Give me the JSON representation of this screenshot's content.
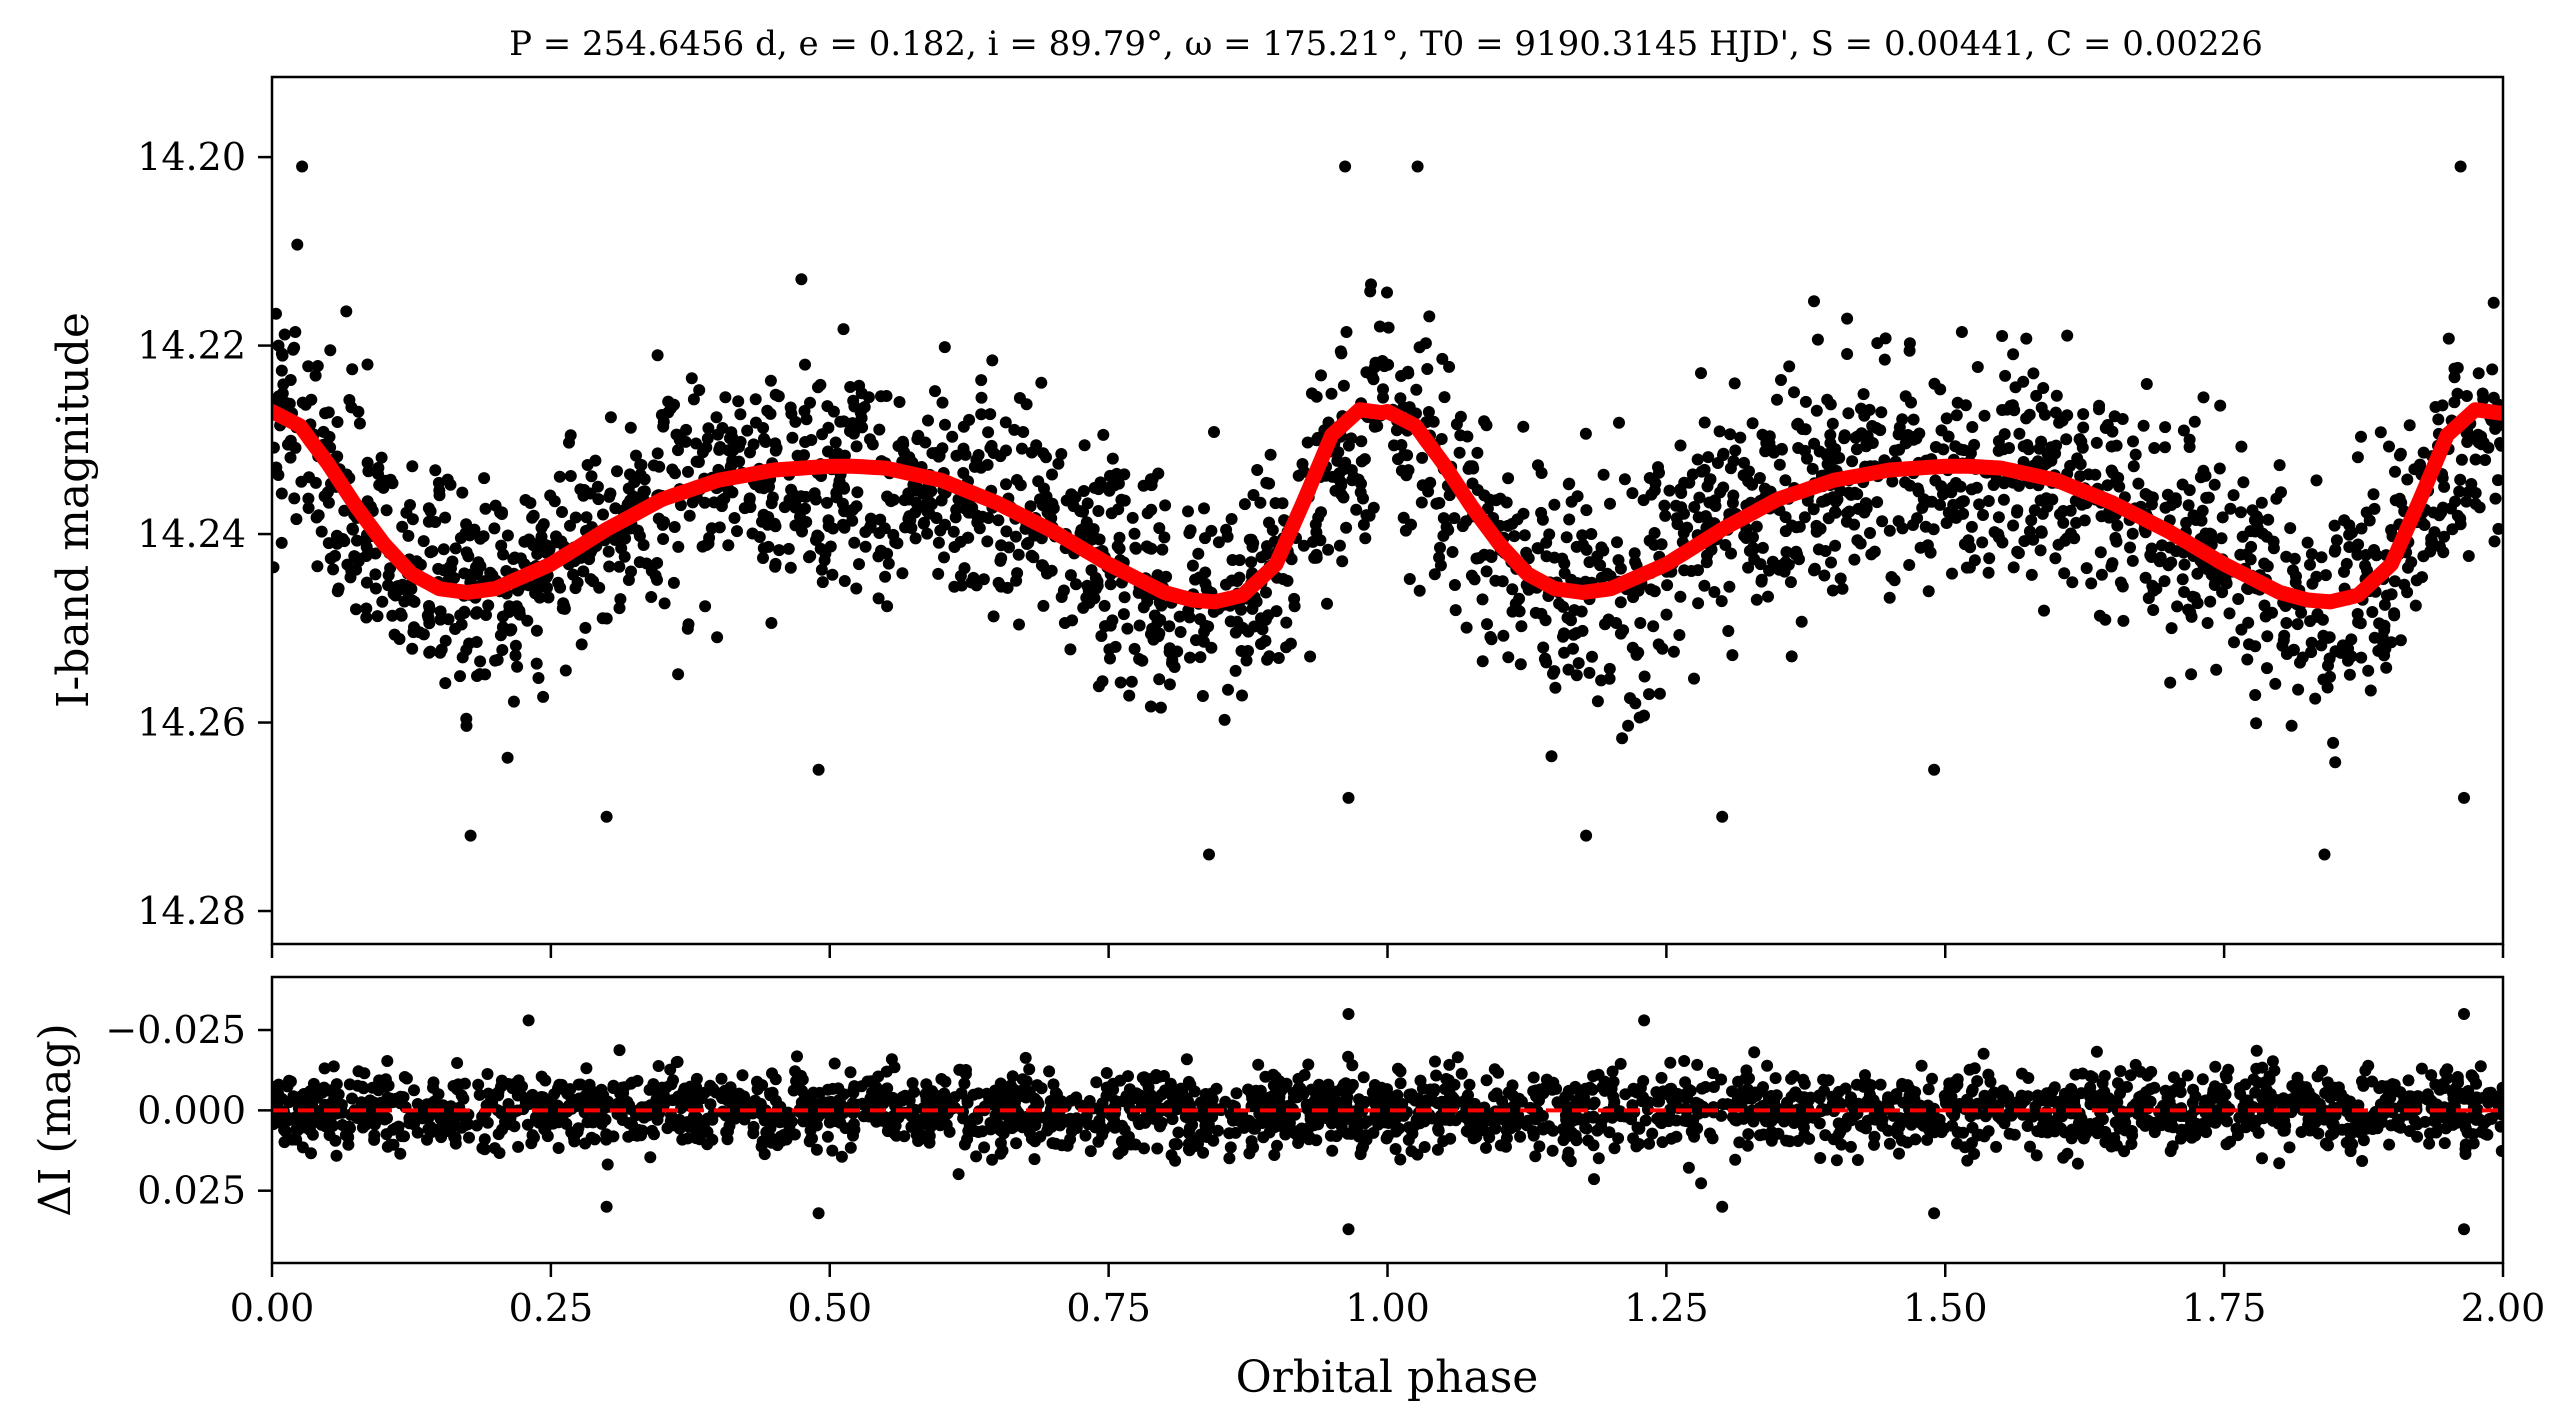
{
  "chart_data": [
    {
      "type": "scatter",
      "panel": "light curve",
      "title": "P = 254.6456 d, e = 0.182, i = 89.79°, ω = 175.21°, T0 = 9190.3145 HJD', S = 0.00441, C = 0.00226",
      "xlabel": "",
      "ylabel": "I-band magnitude",
      "xlim": [
        0.0,
        2.0
      ],
      "ylim": [
        14.2835,
        14.1915
      ],
      "y_inverted": true,
      "y_ticks": [
        "14.20",
        "14.22",
        "14.24",
        "14.26",
        "14.28"
      ],
      "x_ticks": [
        0.0,
        0.25,
        0.5,
        0.75,
        1.0,
        1.25,
        1.5,
        1.75,
        2.0
      ],
      "series": [
        {
          "kind": "observations",
          "color": "#000000",
          "x": [
            0.0,
            0.05,
            0.1,
            0.15,
            0.175,
            0.2,
            0.25,
            0.3,
            0.35,
            0.4,
            0.45,
            0.5,
            0.55,
            0.6,
            0.65,
            0.7,
            0.75,
            0.8,
            0.845,
            0.9,
            0.95,
            1.0,
            1.05,
            1.1,
            1.15,
            1.175,
            1.2,
            1.25,
            1.3,
            1.35,
            1.4,
            1.45,
            1.5,
            1.55,
            1.6,
            1.65,
            1.7,
            1.75,
            1.8,
            1.845,
            1.9,
            1.95,
            2.0
          ],
          "y_center": [
            14.227,
            14.234,
            14.241,
            14.245,
            14.2465,
            14.246,
            14.243,
            14.239,
            14.2365,
            14.2345,
            14.2335,
            14.233,
            14.2333,
            14.2343,
            14.2362,
            14.239,
            14.2425,
            14.246,
            14.2472,
            14.244,
            14.233,
            14.227,
            14.234,
            14.241,
            14.245,
            14.2465,
            14.246,
            14.243,
            14.239,
            14.2365,
            14.2345,
            14.2335,
            14.233,
            14.2333,
            14.2343,
            14.2362,
            14.239,
            14.2425,
            14.246,
            14.2472,
            14.244,
            14.233,
            14.227
          ],
          "scatter_mag": 0.006,
          "outliers": [
            {
              "x": 0.027,
              "y": 14.201
            },
            {
              "x": 0.962,
              "y": 14.201
            },
            {
              "x": 1.027,
              "y": 14.201
            },
            {
              "x": 1.962,
              "y": 14.201
            },
            {
              "x": 0.178,
              "y": 14.272
            },
            {
              "x": 0.84,
              "y": 14.274
            },
            {
              "x": 1.178,
              "y": 14.272
            },
            {
              "x": 1.84,
              "y": 14.274
            },
            {
              "x": 0.49,
              "y": 14.265
            },
            {
              "x": 1.49,
              "y": 14.265
            },
            {
              "x": 0.965,
              "y": 14.268
            },
            {
              "x": 1.965,
              "y": 14.268
            },
            {
              "x": 0.3,
              "y": 14.27
            },
            {
              "x": 1.3,
              "y": 14.27
            }
          ]
        },
        {
          "kind": "model",
          "color": "#ff0000",
          "x": [
            0.0,
            0.025,
            0.05,
            0.075,
            0.1,
            0.125,
            0.15,
            0.175,
            0.2,
            0.25,
            0.3,
            0.35,
            0.4,
            0.45,
            0.5,
            0.52,
            0.55,
            0.6,
            0.65,
            0.7,
            0.75,
            0.8,
            0.825,
            0.845,
            0.87,
            0.9,
            0.925,
            0.95,
            0.975,
            1.0,
            1.005
          ],
          "y": [
            14.227,
            14.2285,
            14.2325,
            14.237,
            14.241,
            14.2442,
            14.2458,
            14.2462,
            14.2458,
            14.2432,
            14.2395,
            14.2363,
            14.2343,
            14.2332,
            14.2328,
            14.2328,
            14.233,
            14.2343,
            14.2367,
            14.2397,
            14.2432,
            14.2462,
            14.247,
            14.2472,
            14.2465,
            14.2432,
            14.2365,
            14.2295,
            14.2268,
            14.2272,
            14.227
          ]
        }
      ]
    },
    {
      "type": "scatter",
      "panel": "residuals",
      "xlabel": "Orbital phase",
      "ylabel": "ΔI (mag)",
      "xlim": [
        0.0,
        2.0
      ],
      "ylim": [
        0.0475,
        -0.0415
      ],
      "y_inverted": true,
      "y_ticks": [
        "−0.025",
        "0.000",
        "0.025"
      ],
      "x_ticks": [
        "0.00",
        "0.25",
        "0.50",
        "0.75",
        "1.00",
        "1.25",
        "1.50",
        "1.75",
        "2.00"
      ],
      "series": [
        {
          "kind": "residuals",
          "color": "#000000",
          "center": 0.0,
          "scatter_mag": 0.006,
          "outliers": [
            {
              "x": 0.23,
              "y": -0.028
            },
            {
              "x": 0.965,
              "y": -0.03
            },
            {
              "x": 1.23,
              "y": -0.028
            },
            {
              "x": 1.965,
              "y": -0.03
            },
            {
              "x": 0.965,
              "y": 0.037
            },
            {
              "x": 1.965,
              "y": 0.037
            },
            {
              "x": 0.49,
              "y": 0.032
            },
            {
              "x": 1.49,
              "y": 0.032
            },
            {
              "x": 0.3,
              "y": 0.03
            },
            {
              "x": 1.3,
              "y": 0.03
            }
          ]
        },
        {
          "kind": "zero line",
          "color": "#ff0000",
          "y": 0.0
        }
      ]
    }
  ]
}
